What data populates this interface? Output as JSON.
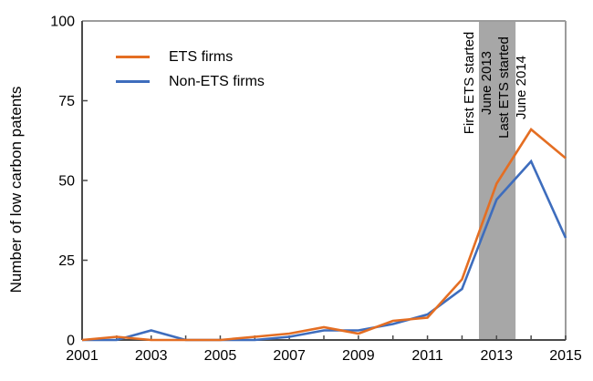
{
  "figure": {
    "y_axis_label": "Number of low carbon patents",
    "legend": [
      {
        "label": "ETS firms",
        "color": "#E46E23"
      },
      {
        "label": "Non-ETS firms",
        "color": "#3E6DBD"
      }
    ],
    "band_labels": [
      {
        "line1": "First ETS started",
        "line2": "June 2013"
      },
      {
        "line1": "Last ETS started",
        "line2": "June 2014"
      }
    ]
  },
  "chart_data": {
    "type": "line",
    "title": "",
    "xlabel": "",
    "ylabel": "Number of low carbon patents",
    "x": [
      2001,
      2002,
      2003,
      2004,
      2005,
      2006,
      2007,
      2008,
      2009,
      2010,
      2011,
      2012,
      2013,
      2014,
      2015
    ],
    "series": [
      {
        "name": "ETS firms",
        "color": "#E46E23",
        "values": [
          0,
          1,
          0,
          0,
          0,
          1,
          2,
          4,
          2,
          6,
          7,
          19,
          49,
          66,
          57
        ]
      },
      {
        "name": "Non-ETS firms",
        "color": "#3E6DBD",
        "values": [
          0,
          0,
          3,
          0,
          0,
          0,
          1,
          3,
          3,
          5,
          8,
          16,
          44,
          56,
          32
        ]
      }
    ],
    "xlim": [
      2001,
      2015
    ],
    "ylim": [
      0,
      100
    ],
    "yticks": [
      0,
      25,
      50,
      75,
      100
    ],
    "xticks_minor": [
      2001,
      2002,
      2003,
      2004,
      2005,
      2006,
      2007,
      2008,
      2009,
      2010,
      2011,
      2012,
      2013,
      2014,
      2015
    ],
    "xtick_labels": [
      2001,
      2003,
      2005,
      2007,
      2009,
      2011,
      2013,
      2015
    ],
    "grid": false,
    "legend_position": "upper-left-inside",
    "shaded_band": {
      "x_start": 2012.49,
      "x_end": 2013.55,
      "color": "#A7A7A7",
      "annotations": [
        "First ETS started June 2013",
        "Last ETS started June 2014"
      ]
    },
    "colors": {
      "axis_dark": "#4A4A4A",
      "frame_light": "#9C9C9C",
      "text": "#000000"
    }
  }
}
